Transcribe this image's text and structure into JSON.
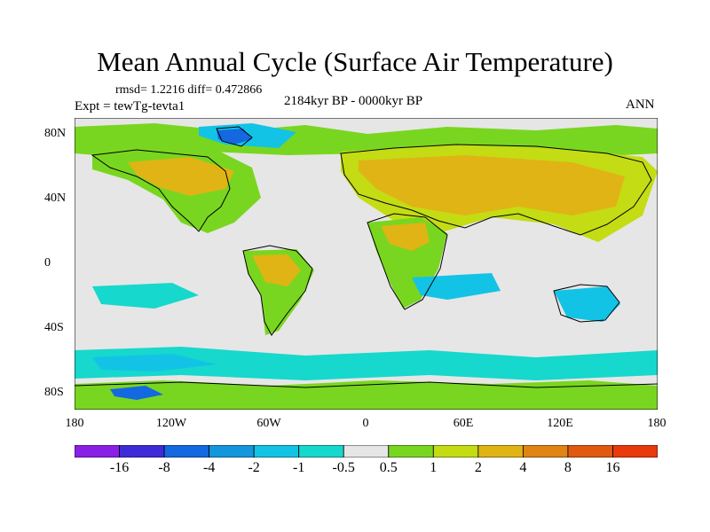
{
  "figure": {
    "title": "Mean Annual Cycle (Surface Air Temperature)",
    "stats": "rmsd= 1.2216 diff= 0.472866",
    "experiment": "Expt = tewTg-tevta1",
    "period": "2184kyr BP - 0000kyr BP",
    "season": "ANN"
  },
  "axes": {
    "lat_labels": [
      "80N",
      "40N",
      "0",
      "40S",
      "80S"
    ],
    "lon_labels": [
      "180",
      "120W",
      "60W",
      "0",
      "60E",
      "120E",
      "180"
    ]
  },
  "colorbar": {
    "labels": [
      "-16",
      "-8",
      "-4",
      "-2",
      "-1",
      "-0.5",
      "0.5",
      "1",
      "2",
      "4",
      "8",
      "16"
    ],
    "colors": [
      "#8a1fe6",
      "#3d2bd9",
      "#1468e0",
      "#1396dc",
      "#12c3e6",
      "#16d8cc",
      "#e6e6e6",
      "#79d620",
      "#c3dc14",
      "#e0b414",
      "#e08414",
      "#e05a10",
      "#e83a0c"
    ]
  },
  "map_colors": {
    "ocean_neutral": "#e6e6e6",
    "cool_slight": "#16d8cc",
    "cool": "#12c3e6",
    "warm_slight": "#79d620",
    "warm_moderate": "#c3dc14",
    "warm": "#e0b414",
    "warm_strong": "#e08414",
    "cold_strong": "#1468e0",
    "coastline": "#000000"
  }
}
